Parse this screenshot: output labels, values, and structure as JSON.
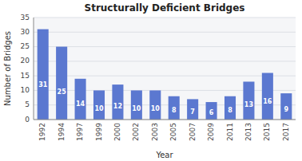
{
  "chart_data": {
    "type": "bar",
    "title": "Structurally Deficient Bridges",
    "xlabel": "Year",
    "ylabel": "Number of Bridges",
    "categories": [
      "1992",
      "1994",
      "1997",
      "1999",
      "2000",
      "2002",
      "2003",
      "2005",
      "2007",
      "2009",
      "2011",
      "2013",
      "2015",
      "2017"
    ],
    "values": [
      31,
      25,
      14,
      10,
      12,
      10,
      10,
      8,
      7,
      6,
      8,
      13,
      16,
      9
    ],
    "color": "#5B78D0",
    "ylim": [
      0,
      35
    ],
    "yticks": [
      0,
      5,
      10,
      15,
      20,
      25,
      30,
      35
    ],
    "grid": true,
    "data_labels": true
  }
}
